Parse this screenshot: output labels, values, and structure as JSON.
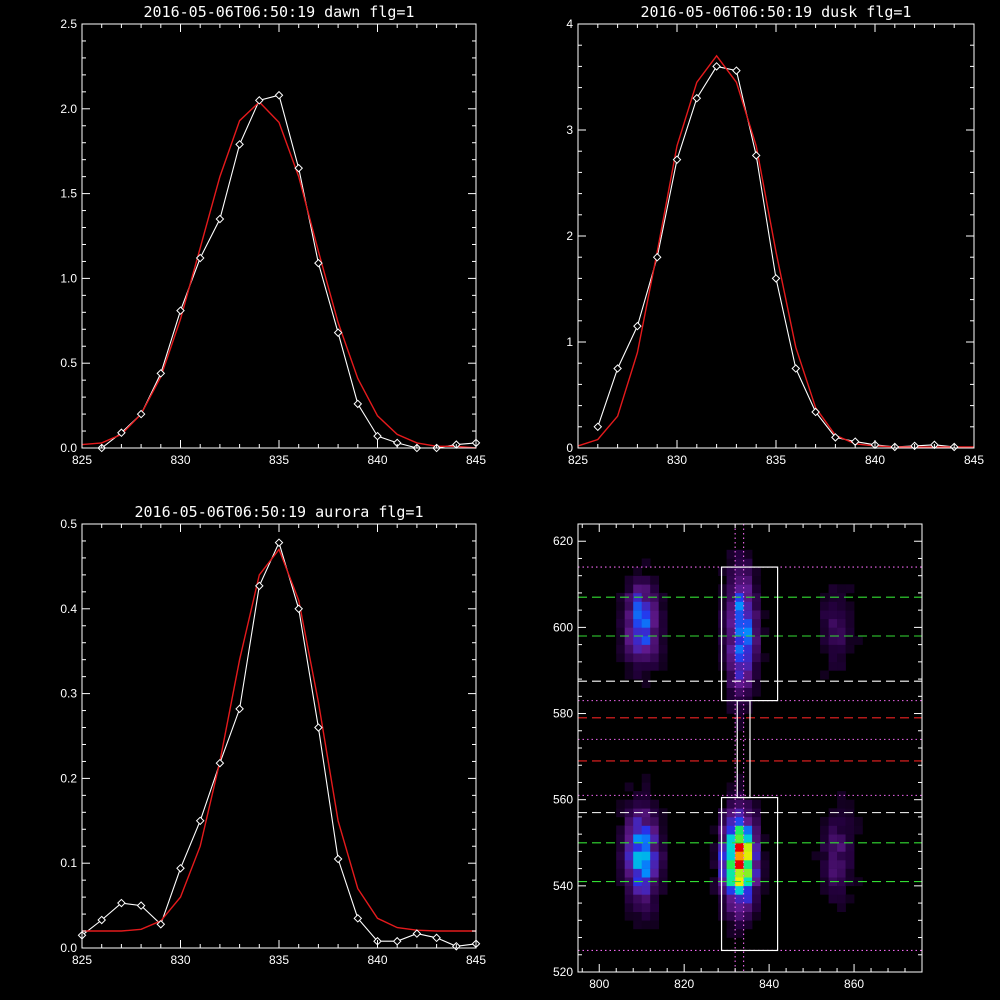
{
  "chart_data": [
    {
      "id": "dawn",
      "type": "line",
      "title": "2016-05-06T06:50:19 dawn flg=1",
      "xlim": [
        825,
        845
      ],
      "ylim": [
        0,
        2.5
      ],
      "xticks": [
        "825",
        "830",
        "835",
        "840",
        "845"
      ],
      "yticks": [
        "0.0",
        "0.5",
        "1.0",
        "1.5",
        "2.0",
        "2.5"
      ],
      "series": [
        {
          "role": "data",
          "color": "#ffffff",
          "marker": "diamond",
          "x": [
            826,
            827,
            828,
            829,
            830,
            831,
            832,
            833,
            834,
            835,
            836,
            837,
            838,
            839,
            840,
            841,
            842,
            843,
            844,
            845
          ],
          "y": [
            0.0,
            0.09,
            0.2,
            0.44,
            0.81,
            1.12,
            1.35,
            1.79,
            2.05,
            2.08,
            1.65,
            1.09,
            0.68,
            0.26,
            0.07,
            0.03,
            0.0,
            0.0,
            0.02,
            0.03
          ]
        },
        {
          "role": "fit",
          "color": "#e41a1c",
          "x": [
            825,
            826,
            827,
            828,
            829,
            830,
            831,
            832,
            833,
            834,
            835,
            836,
            837,
            838,
            839,
            840,
            841,
            842,
            843,
            844,
            845
          ],
          "y": [
            0.02,
            0.03,
            0.08,
            0.2,
            0.42,
            0.76,
            1.18,
            1.6,
            1.93,
            2.04,
            1.92,
            1.6,
            1.16,
            0.74,
            0.41,
            0.19,
            0.08,
            0.03,
            0.01,
            0.01,
            0.0
          ]
        }
      ]
    },
    {
      "id": "dusk",
      "type": "line",
      "title": "2016-05-06T06:50:19 dusk flg=1",
      "xlim": [
        825,
        845
      ],
      "ylim": [
        0,
        4
      ],
      "xticks": [
        "825",
        "830",
        "835",
        "840",
        "845"
      ],
      "yticks": [
        "0",
        "1",
        "2",
        "3",
        "4"
      ],
      "series": [
        {
          "role": "data",
          "color": "#ffffff",
          "marker": "diamond",
          "x": [
            826,
            827,
            828,
            829,
            830,
            831,
            832,
            833,
            834,
            835,
            836,
            837,
            838,
            839,
            840,
            841,
            842,
            843,
            844
          ],
          "y": [
            0.2,
            0.75,
            1.15,
            1.8,
            2.72,
            3.3,
            3.6,
            3.56,
            2.76,
            1.6,
            0.75,
            0.34,
            0.1,
            0.06,
            0.03,
            0.01,
            0.02,
            0.03,
            0.01
          ]
        },
        {
          "role": "fit",
          "color": "#e41a1c",
          "x": [
            825,
            826,
            827,
            828,
            829,
            830,
            831,
            832,
            833,
            834,
            835,
            836,
            837,
            838,
            839,
            840,
            841,
            842,
            843,
            844,
            845
          ],
          "y": [
            0.02,
            0.08,
            0.3,
            0.9,
            1.85,
            2.85,
            3.45,
            3.7,
            3.45,
            2.85,
            1.85,
            0.95,
            0.38,
            0.12,
            0.04,
            0.02,
            0.01,
            0.01,
            0.01,
            0.01,
            0.01
          ]
        }
      ]
    },
    {
      "id": "aurora",
      "type": "line",
      "title": "2016-05-06T06:50:19 aurora flg=1",
      "xlim": [
        825,
        845
      ],
      "ylim": [
        0,
        0.5
      ],
      "xticks": [
        "825",
        "830",
        "835",
        "840",
        "845"
      ],
      "yticks": [
        "0.0",
        "0.1",
        "0.2",
        "0.3",
        "0.4",
        "0.5"
      ],
      "series": [
        {
          "role": "data",
          "color": "#ffffff",
          "marker": "diamond",
          "x": [
            825,
            826,
            827,
            828,
            829,
            830,
            831,
            832,
            833,
            834,
            835,
            836,
            837,
            838,
            839,
            840,
            841,
            842,
            843,
            844,
            845
          ],
          "y": [
            0.015,
            0.033,
            0.053,
            0.05,
            0.028,
            0.094,
            0.15,
            0.218,
            0.282,
            0.427,
            0.478,
            0.4,
            0.26,
            0.105,
            0.035,
            0.008,
            0.008,
            0.017,
            0.012,
            0.002,
            0.005
          ]
        },
        {
          "role": "fit",
          "color": "#e41a1c",
          "x": [
            825,
            826,
            827,
            828,
            829,
            830,
            831,
            832,
            833,
            834,
            835,
            836,
            837,
            838,
            839,
            840,
            841,
            842,
            843,
            844,
            845
          ],
          "y": [
            0.02,
            0.02,
            0.02,
            0.022,
            0.032,
            0.06,
            0.12,
            0.22,
            0.34,
            0.44,
            0.47,
            0.41,
            0.29,
            0.15,
            0.07,
            0.035,
            0.024,
            0.021,
            0.02,
            0.02,
            0.02
          ]
        }
      ]
    },
    {
      "id": "image",
      "type": "heatmap",
      "xlim": [
        795,
        876
      ],
      "ylim": [
        520,
        624
      ],
      "xticks": [
        800,
        820,
        840,
        860
      ],
      "yticks": [
        520,
        540,
        560,
        580,
        600,
        620
      ],
      "colormap": "rainbow-on-black",
      "blobs": [
        {
          "x": 810,
          "y": 601,
          "sx": 2.5,
          "sy": 6,
          "amp": 0.45
        },
        {
          "x": 810,
          "y": 547,
          "sx": 2.6,
          "sy": 7,
          "amp": 0.5
        },
        {
          "x": 833.5,
          "y": 599,
          "sx": 2.2,
          "sy": 9,
          "amp": 0.5
        },
        {
          "x": 833,
          "y": 546,
          "sx": 2.5,
          "sy": 6.5,
          "amp": 1.0
        },
        {
          "x": 856,
          "y": 600,
          "sx": 2.5,
          "sy": 6,
          "amp": 0.13
        },
        {
          "x": 856,
          "y": 547,
          "sx": 2.5,
          "sy": 7,
          "amp": 0.17
        }
      ],
      "boxes": [
        {
          "x0": 828.8,
          "x1": 842,
          "y0": 583,
          "y1": 614,
          "color": "#ffffff"
        },
        {
          "x0": 828.8,
          "x1": 842,
          "y0": 525,
          "y1": 560.5,
          "color": "#ffffff"
        },
        {
          "x0": 832.5,
          "x1": 835.5,
          "y0": 560.5,
          "y1": 583,
          "color": "#ffffff"
        }
      ],
      "hlines": [
        {
          "y": 614,
          "color": "#ee66ee",
          "style": "dotted"
        },
        {
          "y": 607,
          "color": "#33dd33",
          "style": "dashed"
        },
        {
          "y": 598,
          "color": "#33dd33",
          "style": "dashed"
        },
        {
          "y": 587.5,
          "color": "#ffffff",
          "style": "dashed"
        },
        {
          "y": 583,
          "color": "#ee66ee",
          "style": "dotted"
        },
        {
          "y": 579,
          "color": "#ee2222",
          "style": "dashed"
        },
        {
          "y": 574,
          "color": "#ee66ee",
          "style": "dotted"
        },
        {
          "y": 569,
          "color": "#ee2222",
          "style": "dashed"
        },
        {
          "y": 561,
          "color": "#ee66ee",
          "style": "dotted"
        },
        {
          "y": 557,
          "color": "#ffffff",
          "style": "dashed"
        },
        {
          "y": 550,
          "color": "#33dd33",
          "style": "dashed"
        },
        {
          "y": 541,
          "color": "#33dd33",
          "style": "dashed"
        },
        {
          "y": 525,
          "color": "#ee66ee",
          "style": "dotted"
        }
      ],
      "vlines": [
        {
          "x": 832,
          "color": "#ee66ee",
          "style": "dotted"
        },
        {
          "x": 834,
          "color": "#ee66ee",
          "style": "dotted"
        }
      ]
    }
  ]
}
